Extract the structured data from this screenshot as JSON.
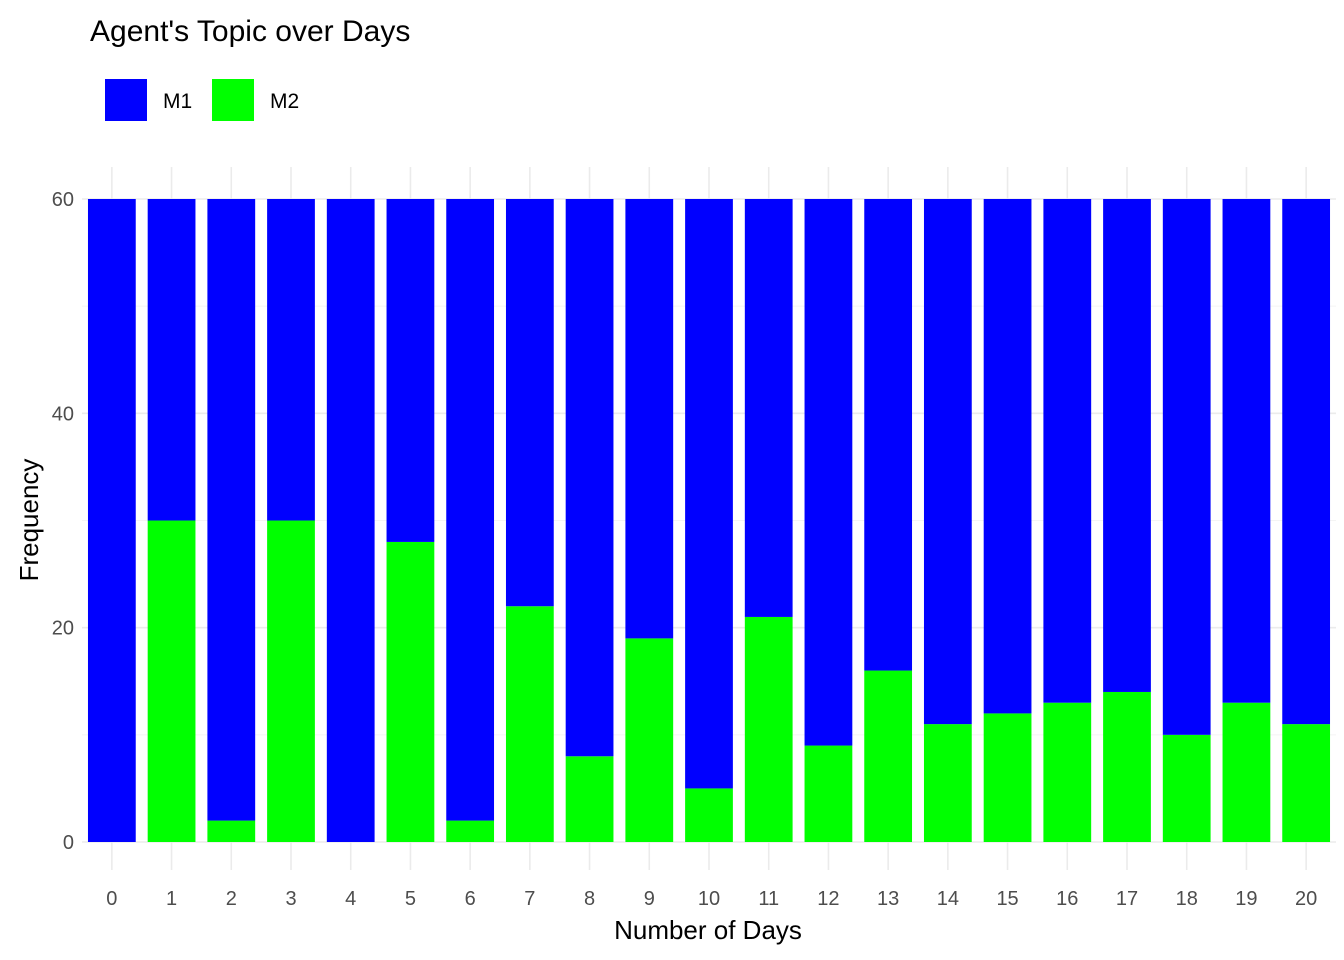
{
  "chart_data": {
    "type": "bar",
    "stacked": true,
    "title": "Agent's Topic over Days",
    "xlabel": "Number of Days",
    "ylabel": "Frequency",
    "categories": [
      "0",
      "1",
      "2",
      "3",
      "4",
      "5",
      "6",
      "7",
      "8",
      "9",
      "10",
      "11",
      "12",
      "13",
      "14",
      "15",
      "16",
      "17",
      "18",
      "19",
      "20"
    ],
    "series": [
      {
        "name": "M1",
        "color": "#0000ff",
        "values": [
          60,
          30,
          58,
          30,
          60,
          32,
          58,
          38,
          52,
          41,
          55,
          39,
          51,
          44,
          49,
          48,
          47,
          46,
          50,
          47,
          49
        ]
      },
      {
        "name": "M2",
        "color": "#00ff00",
        "values": [
          0,
          30,
          2,
          30,
          0,
          28,
          2,
          22,
          8,
          19,
          5,
          21,
          9,
          16,
          11,
          12,
          13,
          14,
          10,
          13,
          11
        ]
      }
    ],
    "ylim": [
      0,
      60
    ],
    "yticks": [
      0,
      20,
      40,
      60
    ],
    "grid": true,
    "legend_position": "top-left"
  }
}
